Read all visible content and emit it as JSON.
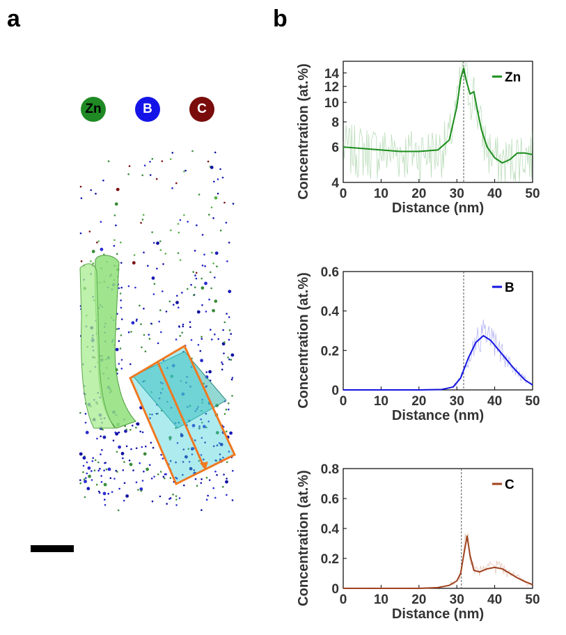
{
  "panels": {
    "a": "a",
    "b": "b"
  },
  "elements": [
    {
      "symbol": "Zn",
      "color": "#1f8a24"
    },
    {
      "symbol": "B",
      "color": "#1414e8"
    },
    {
      "symbol": "C",
      "color": "#7a0c0c"
    }
  ],
  "chart_data": [
    {
      "type": "line",
      "xlabel": "Distance (nm)",
      "ylabel": "Concentration (at.%)",
      "xlim": [
        0,
        50
      ],
      "ylim": [
        4,
        16
      ],
      "xticks": [
        0,
        10,
        20,
        30,
        40,
        50
      ],
      "yticks": [
        4,
        6,
        8,
        10,
        12,
        14
      ],
      "ytick_labels": [
        "4",
        "6",
        "8",
        "10",
        "12",
        "14"
      ],
      "yscale": "log",
      "vline_x": 31.8,
      "legend": "top-right",
      "series": [
        {
          "name": "Zn",
          "color": "#1a8c1a",
          "x": [
            0,
            5,
            10,
            15,
            20,
            25,
            28,
            30,
            31,
            31.8,
            32.5,
            33.5,
            34.5,
            35.5,
            36.5,
            38,
            40,
            42,
            44,
            46,
            48,
            50
          ],
          "y": [
            6.0,
            5.9,
            5.8,
            5.7,
            5.7,
            5.8,
            6.5,
            9.5,
            13.0,
            14.8,
            12.8,
            11.0,
            11.3,
            9.0,
            7.3,
            6.0,
            5.3,
            5.0,
            5.2,
            5.6,
            5.6,
            5.5
          ]
        }
      ]
    },
    {
      "type": "line",
      "xlabel": "Distance (nm)",
      "ylabel": "Concentration (at.%)",
      "xlim": [
        0,
        50
      ],
      "ylim": [
        0,
        0.6
      ],
      "xticks": [
        0,
        10,
        20,
        30,
        40,
        50
      ],
      "yticks": [
        0,
        0.2,
        0.4,
        0.6
      ],
      "ytick_labels": [
        "0",
        "0.2",
        "0.4",
        "0.6"
      ],
      "vline_x": 31.8,
      "legend": "top-right",
      "series": [
        {
          "name": "B",
          "color": "#1414e0",
          "x": [
            0,
            10,
            20,
            26,
            29,
            31,
            33,
            35,
            37,
            39,
            42,
            45,
            48,
            50
          ],
          "y": [
            0,
            0,
            0,
            0.002,
            0.015,
            0.06,
            0.16,
            0.24,
            0.275,
            0.25,
            0.18,
            0.11,
            0.05,
            0.025
          ]
        }
      ]
    },
    {
      "type": "line",
      "xlabel": "Distance (nm)",
      "ylabel": "Concentration (at.%)",
      "xlim": [
        0,
        50
      ],
      "ylim": [
        0,
        0.8
      ],
      "xticks": [
        0,
        10,
        20,
        30,
        40,
        50
      ],
      "yticks": [
        0,
        0.2,
        0.4,
        0.6,
        0.8
      ],
      "ytick_labels": [
        "0",
        "0.2",
        "0.4",
        "0.6",
        "0.8"
      ],
      "vline_x": 31.2,
      "legend": "top-right",
      "series": [
        {
          "name": "C",
          "color": "#a0421e",
          "x": [
            0,
            10,
            20,
            25,
            28,
            30,
            31,
            32,
            32.7,
            33.5,
            34.5,
            36,
            38,
            40,
            42,
            44,
            46,
            48,
            50
          ],
          "y": [
            0,
            0,
            0,
            0.005,
            0.02,
            0.05,
            0.1,
            0.25,
            0.35,
            0.22,
            0.12,
            0.11,
            0.13,
            0.14,
            0.13,
            0.1,
            0.07,
            0.045,
            0.025
          ]
        }
      ]
    }
  ]
}
